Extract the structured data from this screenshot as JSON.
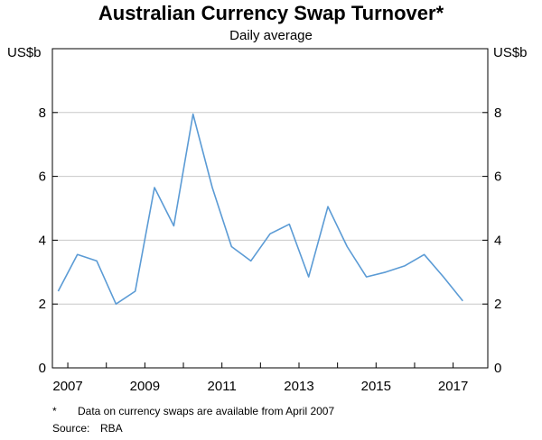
{
  "chart_data": {
    "type": "line",
    "title": "Australian Currency Swap Turnover*",
    "subtitle": "Daily average",
    "unit_left": "US$b",
    "unit_right": "US$b",
    "x_range": [
      2006.6,
      2017.9
    ],
    "ylim": [
      0,
      10
    ],
    "y_ticks": [
      0,
      2,
      4,
      6,
      8
    ],
    "x_tick_labels": [
      "2007",
      "2009",
      "2011",
      "2013",
      "2015",
      "2017"
    ],
    "x_tick_positions": [
      2007,
      2009,
      2011,
      2013,
      2015,
      2017
    ],
    "grid": true,
    "series": [
      {
        "color": "#5b9bd5",
        "x": [
          2006.75,
          2007.25,
          2007.75,
          2008.25,
          2008.75,
          2009.25,
          2009.75,
          2010.25,
          2010.75,
          2011.25,
          2011.75,
          2012.25,
          2012.75,
          2013.25,
          2013.75,
          2014.25,
          2014.75,
          2015.25,
          2015.75,
          2016.25,
          2016.75,
          2017.25
        ],
        "y": [
          2.4,
          3.55,
          3.35,
          2.0,
          2.4,
          5.65,
          4.45,
          7.95,
          5.65,
          3.8,
          3.35,
          4.2,
          4.5,
          2.85,
          5.05,
          3.8,
          2.85,
          3.0,
          3.2,
          3.55,
          2.85,
          2.1
        ]
      }
    ]
  },
  "footnote": {
    "mark": "*",
    "text": "Data on currency swaps are available from April 2007"
  },
  "source": {
    "label": "Source:",
    "value": "RBA"
  }
}
